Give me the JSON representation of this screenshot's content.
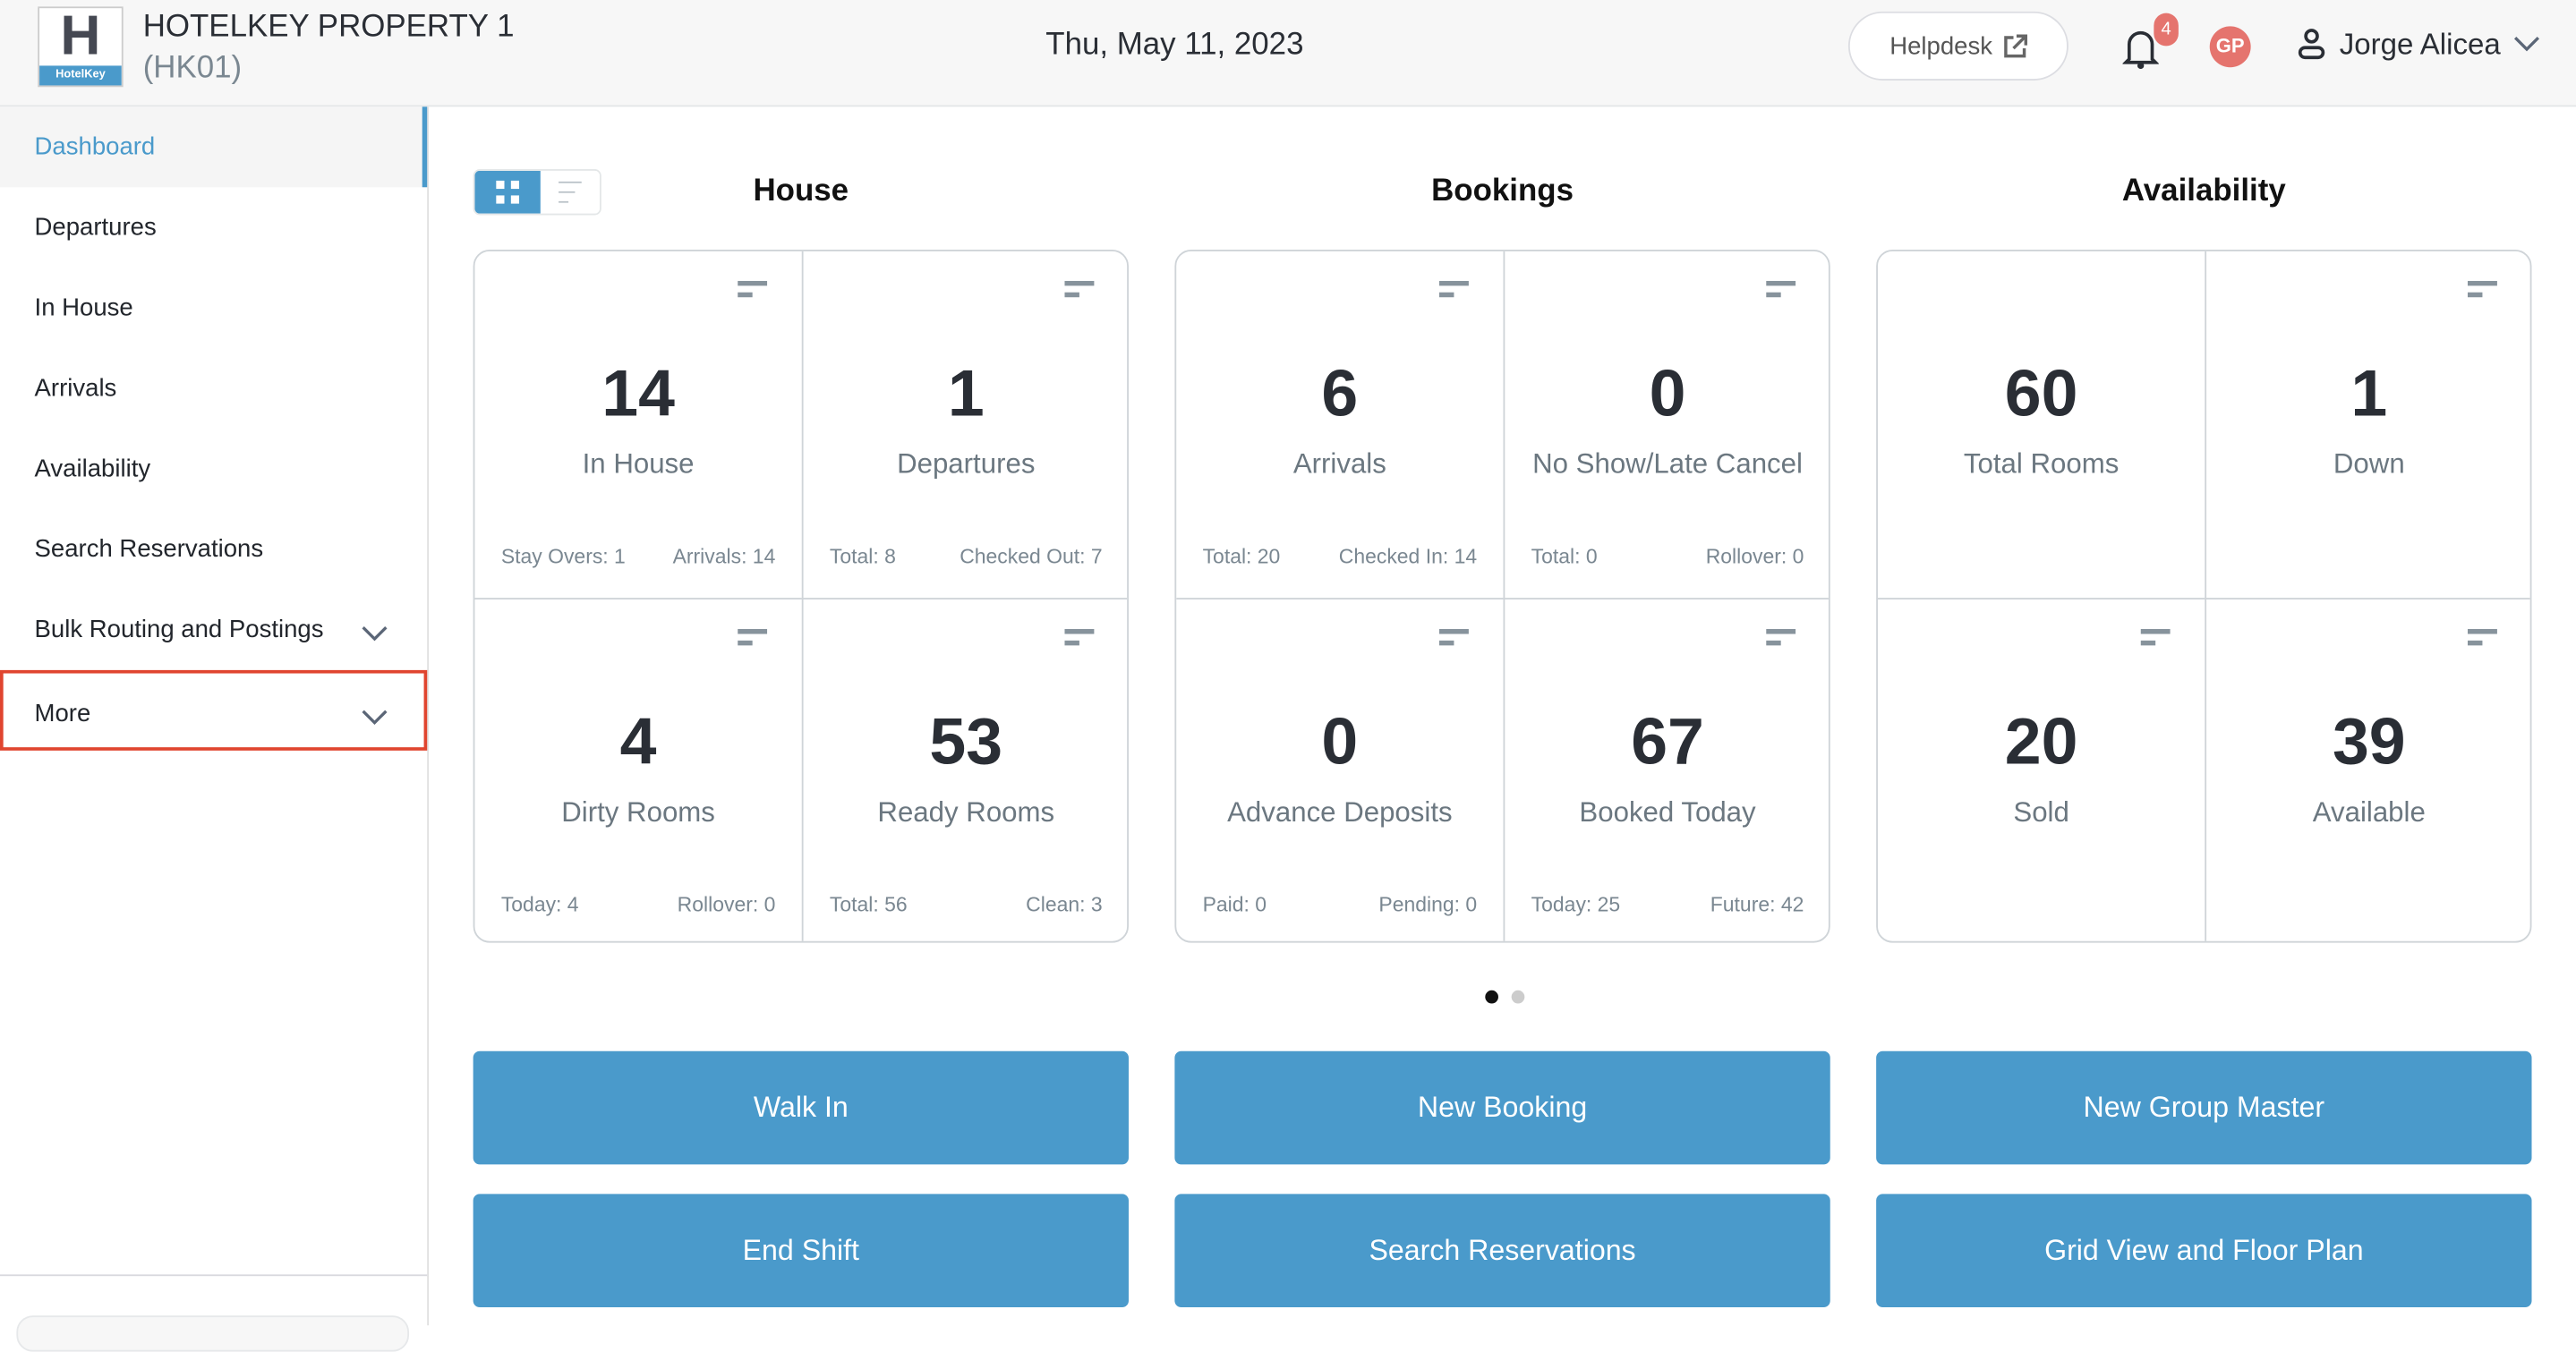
{
  "header": {
    "logo_text": "HotelKey",
    "logo_letter": "H",
    "property_name": "HOTELKEY PROPERTY 1",
    "property_code": "(HK01)",
    "date": "Thu, May 11, 2023",
    "helpdesk_label": "Helpdesk",
    "notification_count": "4",
    "avatar_initials": "GP",
    "user_name": "Jorge Alicea"
  },
  "sidebar": {
    "items": [
      {
        "label": "Dashboard",
        "active": true
      },
      {
        "label": "Departures"
      },
      {
        "label": "In House"
      },
      {
        "label": "Arrivals"
      },
      {
        "label": "Availability"
      },
      {
        "label": "Search Reservations"
      },
      {
        "label": "Bulk Routing and Postings",
        "expandable": true
      },
      {
        "label": "More",
        "expandable": true,
        "highlighted": true
      }
    ]
  },
  "sections": [
    {
      "title": "House",
      "cards": [
        {
          "value": "14",
          "label": "In House",
          "left": "Stay Overs: 1",
          "right": "Arrivals: 14"
        },
        {
          "value": "1",
          "label": "Departures",
          "left": "Total: 8",
          "right": "Checked Out: 7"
        },
        {
          "value": "4",
          "label": "Dirty Rooms",
          "left": "Today: 4",
          "right": "Rollover: 0"
        },
        {
          "value": "53",
          "label": "Ready Rooms",
          "left": "Total: 56",
          "right": "Clean: 3"
        }
      ]
    },
    {
      "title": "Bookings",
      "cards": [
        {
          "value": "6",
          "label": "Arrivals",
          "left": "Total: 20",
          "right": "Checked In: 14"
        },
        {
          "value": "0",
          "label": "No Show/Late Cancel",
          "left": "Total: 0",
          "right": "Rollover: 0"
        },
        {
          "value": "0",
          "label": "Advance Deposits",
          "left": "Paid: 0",
          "right": "Pending: 0"
        },
        {
          "value": "67",
          "label": "Booked Today",
          "left": "Today: 25",
          "right": "Future: 42"
        }
      ]
    },
    {
      "title": "Availability",
      "cards": [
        {
          "value": "60",
          "label": "Total Rooms",
          "left": "",
          "right": ""
        },
        {
          "value": "1",
          "label": "Down",
          "left": "",
          "right": ""
        },
        {
          "value": "20",
          "label": "Sold",
          "left": "",
          "right": ""
        },
        {
          "value": "39",
          "label": "Available",
          "left": "",
          "right": ""
        }
      ]
    }
  ],
  "pager": {
    "pages": 2,
    "current": 1
  },
  "actions": [
    "Walk In",
    "New Booking",
    "New Group Master",
    "End Shift",
    "Search Reservations",
    "Grid View and Floor Plan"
  ],
  "colors": {
    "accent": "#4a9acb",
    "badge": "#e5746e",
    "highlight": "#e0452f"
  }
}
